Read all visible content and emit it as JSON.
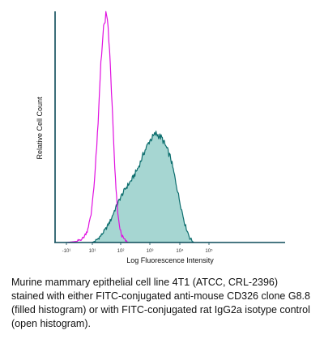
{
  "chart_data": {
    "type": "area",
    "title": "",
    "xlabel": "Log Fluorescence Intensity",
    "ylabel": "Relative Cell Count",
    "x_scale": "biexponential-log",
    "x_ticks": [
      {
        "label": "-10¹",
        "value": -10
      },
      {
        "label": "10¹",
        "value": 10
      },
      {
        "label": "10²",
        "value": 100
      },
      {
        "label": "10³",
        "value": 1000
      },
      {
        "label": "10⁴",
        "value": 10000
      },
      {
        "label": "10⁵",
        "value": 100000
      }
    ],
    "xlim": [
      -10,
      100000
    ],
    "ylim": [
      0,
      1
    ],
    "grid": false,
    "legend": "none",
    "series": [
      {
        "name": "filled histogram",
        "style": "filled",
        "fill_color": "#A6D6D2",
        "line_color": "#0D6E6E",
        "points": [
          [
            10,
            0.0
          ],
          [
            14,
            0.01
          ],
          [
            20,
            0.03
          ],
          [
            30,
            0.06
          ],
          [
            45,
            0.1
          ],
          [
            60,
            0.14
          ],
          [
            100,
            0.2
          ],
          [
            150,
            0.24
          ],
          [
            250,
            0.28
          ],
          [
            400,
            0.33
          ],
          [
            650,
            0.4
          ],
          [
            1000,
            0.45
          ],
          [
            1600,
            0.48
          ],
          [
            2500,
            0.46
          ],
          [
            3500,
            0.42
          ],
          [
            5000,
            0.37
          ],
          [
            7000,
            0.28
          ],
          [
            10000,
            0.18
          ],
          [
            15000,
            0.08
          ],
          [
            22000,
            0.02
          ],
          [
            30000,
            0.0
          ]
        ]
      },
      {
        "name": "open histogram",
        "style": "open",
        "line_color": "#E010E0",
        "points": [
          [
            -10,
            0.0
          ],
          [
            -2,
            0.005
          ],
          [
            3,
            0.02
          ],
          [
            6,
            0.05
          ],
          [
            9,
            0.12
          ],
          [
            12,
            0.28
          ],
          [
            16,
            0.52
          ],
          [
            20,
            0.8
          ],
          [
            25,
            0.94
          ],
          [
            30,
            1.0
          ],
          [
            36,
            0.95
          ],
          [
            43,
            0.78
          ],
          [
            52,
            0.55
          ],
          [
            62,
            0.32
          ],
          [
            75,
            0.16
          ],
          [
            90,
            0.07
          ],
          [
            110,
            0.03
          ],
          [
            140,
            0.01
          ],
          [
            180,
            0.0
          ]
        ]
      }
    ]
  },
  "caption": "Murine mammary epithelial cell line 4T1 (ATCC, CRL-2396) stained with either FITC-conjugated anti-mouse CD326 clone G8.8 (filled histogram) or with FITC-conjugated rat IgG2a isotype control (open histogram).",
  "colors": {
    "axis": "#0B4A58",
    "filled_fill": "#A6D6D2",
    "filled_line": "#0D6E6E",
    "open_line": "#E010E0"
  }
}
